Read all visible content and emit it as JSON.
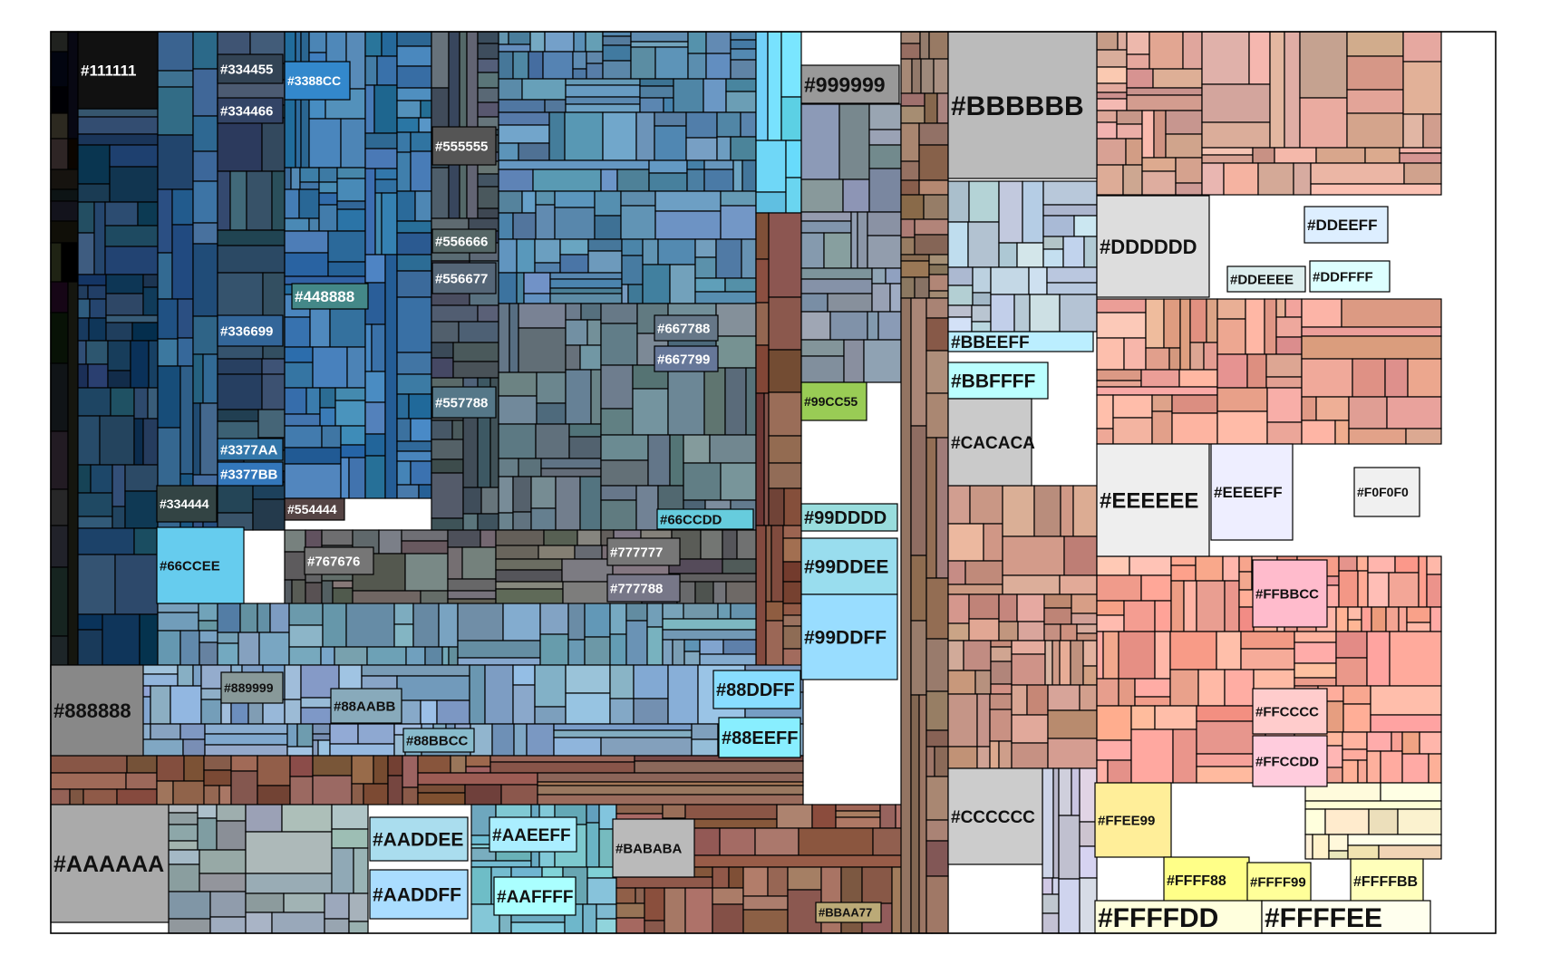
{
  "chart_data": {
    "type": "treemap",
    "title": "",
    "labeled_colors": [
      {
        "label": "#111111",
        "color": "#111111"
      },
      {
        "label": "#334455",
        "color": "#334455"
      },
      {
        "label": "#334466",
        "color": "#334466"
      },
      {
        "label": "#3388CC",
        "color": "#3388CC"
      },
      {
        "label": "#555555",
        "color": "#555555"
      },
      {
        "label": "#556666",
        "color": "#556666"
      },
      {
        "label": "#556677",
        "color": "#556677"
      },
      {
        "label": "#448888",
        "color": "#448888"
      },
      {
        "label": "#336699",
        "color": "#336699"
      },
      {
        "label": "#667788",
        "color": "#667788"
      },
      {
        "label": "#667799",
        "color": "#667799"
      },
      {
        "label": "#557788",
        "color": "#557788"
      },
      {
        "label": "#3377AA",
        "color": "#3377AA"
      },
      {
        "label": "#3377BB",
        "color": "#3377BB"
      },
      {
        "label": "#334444",
        "color": "#334444"
      },
      {
        "label": "#554444",
        "color": "#554444"
      },
      {
        "label": "#66CCDD",
        "color": "#66CCDD"
      },
      {
        "label": "#66CCEE",
        "color": "#66CCEE"
      },
      {
        "label": "#767676",
        "color": "#767676"
      },
      {
        "label": "#777777",
        "color": "#777777"
      },
      {
        "label": "#777788",
        "color": "#777788"
      },
      {
        "label": "#999999",
        "color": "#999999"
      },
      {
        "label": "#99CC55",
        "color": "#99CC55"
      },
      {
        "label": "#99DDDD",
        "color": "#99DDDD"
      },
      {
        "label": "#99DDEE",
        "color": "#99DDEE"
      },
      {
        "label": "#99DDFF",
        "color": "#99DDFF"
      },
      {
        "label": "#888888",
        "color": "#888888"
      },
      {
        "label": "#889999",
        "color": "#889999"
      },
      {
        "label": "#88AABB",
        "color": "#88AABB"
      },
      {
        "label": "#88BBCC",
        "color": "#88BBCC"
      },
      {
        "label": "#88DDFF",
        "color": "#88DDFF"
      },
      {
        "label": "#88EEFF",
        "color": "#88EEFF"
      },
      {
        "label": "#AAAAAA",
        "color": "#AAAAAA"
      },
      {
        "label": "#AADDEE",
        "color": "#AADDEE"
      },
      {
        "label": "#AADDFF",
        "color": "#AADDFF"
      },
      {
        "label": "#AAEEFF",
        "color": "#AAEEFF"
      },
      {
        "label": "#AAFFFF",
        "color": "#AAFFFF"
      },
      {
        "label": "#BABABA",
        "color": "#BABABA"
      },
      {
        "label": "#BBAA77",
        "color": "#BBAA77"
      },
      {
        "label": "#BBBBBB",
        "color": "#BBBBBB"
      },
      {
        "label": "#BBEEFF",
        "color": "#BBEEFF"
      },
      {
        "label": "#BBFFFF",
        "color": "#BBFFFF"
      },
      {
        "label": "#CACACA",
        "color": "#CACACA"
      },
      {
        "label": "#CCCCCC",
        "color": "#CCCCCC"
      },
      {
        "label": "#DDDDDD",
        "color": "#DDDDDD"
      },
      {
        "label": "#DDEEFF",
        "color": "#DDEEFF"
      },
      {
        "label": "#DDEEEE",
        "color": "#DDEEEE"
      },
      {
        "label": "#DDFFFF",
        "color": "#DDFFFF"
      },
      {
        "label": "#EEEEEE",
        "color": "#EEEEEE"
      },
      {
        "label": "#EEEEFF",
        "color": "#EEEEFF"
      },
      {
        "label": "#F0F0F0",
        "color": "#F0F0F0"
      },
      {
        "label": "#FFBBCC",
        "color": "#FFBBCC"
      },
      {
        "label": "#FFCCCC",
        "color": "#FFCCCC"
      },
      {
        "label": "#FFCCDD",
        "color": "#FFCCDD"
      },
      {
        "label": "#FFEE99",
        "color": "#FFEE99"
      },
      {
        "label": "#FFFF88",
        "color": "#FFFF88"
      },
      {
        "label": "#FFFF99",
        "color": "#FFFF99"
      },
      {
        "label": "#FFFFBB",
        "color": "#FFFFBB"
      },
      {
        "label": "#FFFFDD",
        "color": "#FFFFDD"
      },
      {
        "label": "#FFFFEE",
        "color": "#FFFFEE"
      }
    ]
  }
}
